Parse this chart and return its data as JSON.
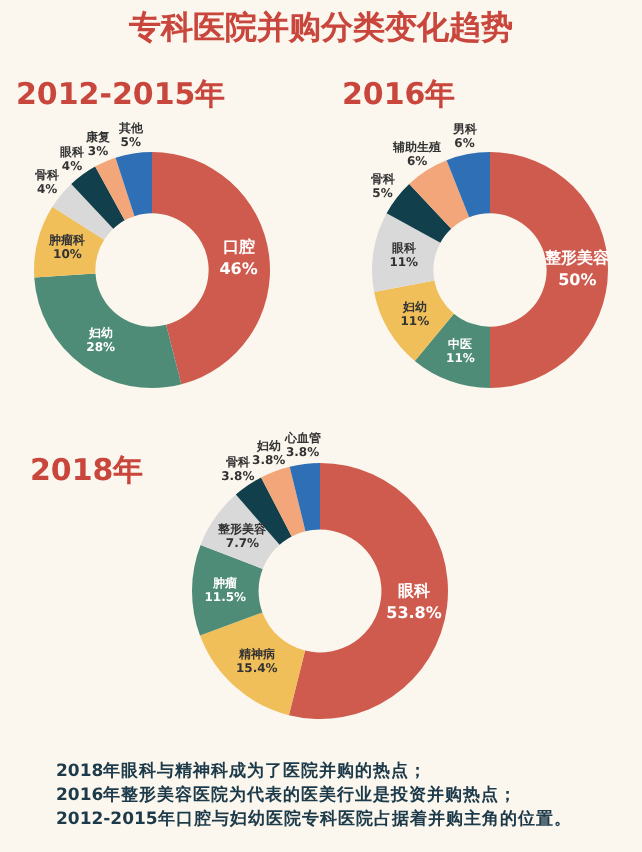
{
  "chart_data": [
    {
      "type": "other",
      "title": "专科医院并购分类变化趋势",
      "annotations": [
        "2018年眼科与精神科成为了医院并购的热点；",
        "2016年整形美容医院为代表的医美行业是投资并购热点；",
        "2012-2015年口腔与妇幼医院专科医院占据着并购主角的位置。"
      ]
    },
    {
      "type": "donut",
      "title": "2012-2015年",
      "categories": [
        "口腔",
        "妇幼",
        "肿瘤科",
        "骨科",
        "眼科",
        "康复",
        "其他"
      ],
      "values": [
        46,
        28,
        10,
        4,
        4,
        3,
        5
      ],
      "value_labels": [
        "46%",
        "28%",
        "10%",
        "4%",
        "4%",
        "3%",
        "5%"
      ],
      "colors": [
        "#cf5b4e",
        "#4e8c78",
        "#f0bf5a",
        "#d9d9d9",
        "#123f4c",
        "#f2a679",
        "#2f6fb5"
      ]
    },
    {
      "type": "donut",
      "title": "2016年",
      "categories": [
        "整形美容",
        "中医",
        "妇幼",
        "眼科",
        "骨科",
        "辅助生殖",
        "男科"
      ],
      "values": [
        50,
        11,
        11,
        11,
        5,
        6,
        6
      ],
      "value_labels": [
        "50%",
        "11%",
        "11%",
        "11%",
        "5%",
        "6%",
        "6%"
      ],
      "colors": [
        "#cf5b4e",
        "#4e8c78",
        "#f0bf5a",
        "#d9d9d9",
        "#123f4c",
        "#f2a679",
        "#2f6fb5"
      ]
    },
    {
      "type": "donut",
      "title": "2018年",
      "categories": [
        "眼科",
        "精神病",
        "肿瘤",
        "整形美容",
        "骨科",
        "妇幼",
        "心血管"
      ],
      "values": [
        53.8,
        15.4,
        11.5,
        7.7,
        3.8,
        3.8,
        3.8
      ],
      "value_labels": [
        "53.8%",
        "15.4%",
        "11.5%",
        "7.7%",
        "3.8%",
        "3.8%",
        "3.8%"
      ],
      "colors": [
        "#cf5b4e",
        "#f0bf5a",
        "#4e8c78",
        "#d9d9d9",
        "#123f4c",
        "#f2a679",
        "#2f6fb5"
      ]
    }
  ]
}
